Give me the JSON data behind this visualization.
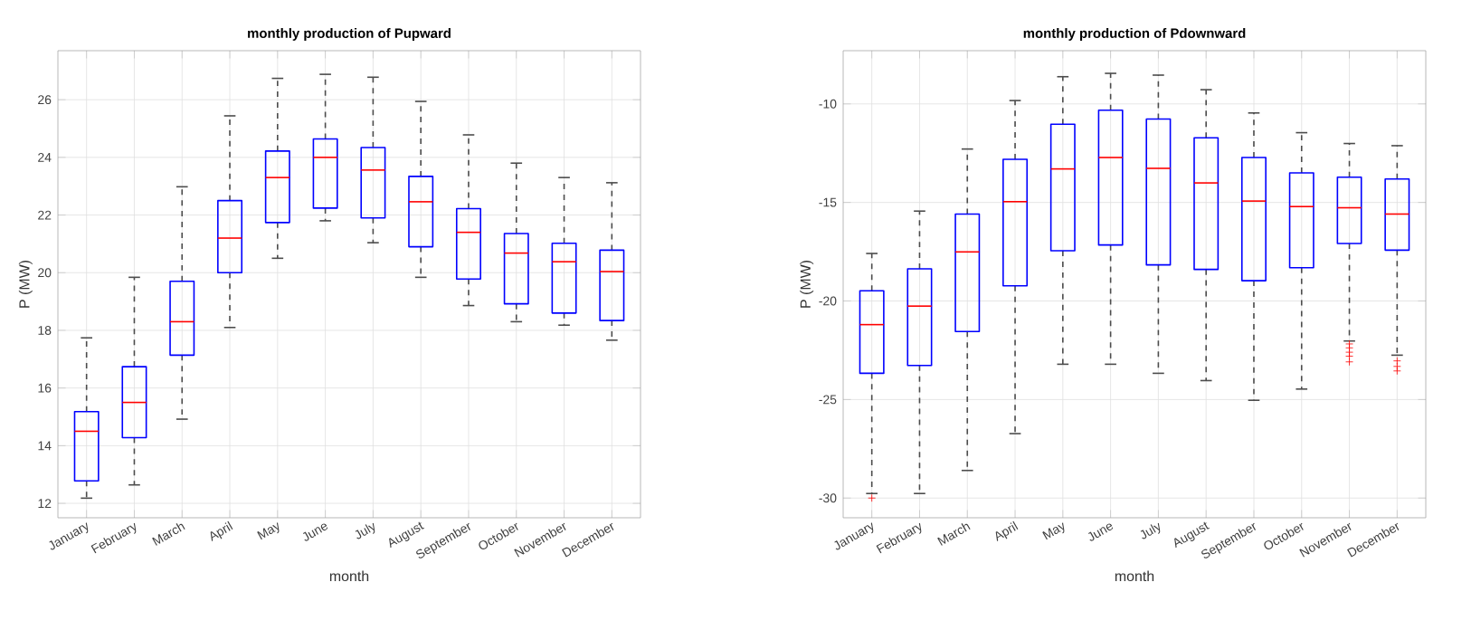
{
  "chart_data": [
    {
      "type": "box",
      "title": "monthly production of  Pupward",
      "xlabel": "month",
      "ylabel": "P (MW)",
      "color": "#0000ff",
      "grid": true,
      "ylim": [
        11.5,
        27.7
      ],
      "yticks": [
        12,
        14,
        16,
        18,
        20,
        22,
        24,
        26
      ],
      "categories": [
        "January",
        "February",
        "March",
        "April",
        "May",
        "June",
        "July",
        "August",
        "September",
        "October",
        "November",
        "December"
      ],
      "boxes": [
        {
          "low": 12.18,
          "q1": 12.78,
          "median": 14.5,
          "q3": 15.18,
          "high": 17.74
        },
        {
          "low": 12.64,
          "q1": 14.28,
          "median": 15.5,
          "q3": 16.74,
          "high": 19.84
        },
        {
          "low": 14.92,
          "q1": 17.14,
          "median": 18.3,
          "q3": 19.7,
          "high": 22.98
        },
        {
          "low": 18.1,
          "q1": 20.0,
          "median": 21.2,
          "q3": 22.5,
          "high": 25.44
        },
        {
          "low": 20.5,
          "q1": 21.74,
          "median": 23.3,
          "q3": 24.22,
          "high": 26.74
        },
        {
          "low": 21.8,
          "q1": 22.24,
          "median": 24.0,
          "q3": 24.64,
          "high": 26.88
        },
        {
          "low": 21.04,
          "q1": 21.9,
          "median": 23.56,
          "q3": 24.34,
          "high": 26.78
        },
        {
          "low": 19.84,
          "q1": 20.9,
          "median": 22.46,
          "q3": 23.34,
          "high": 25.94
        },
        {
          "low": 18.86,
          "q1": 19.78,
          "median": 21.4,
          "q3": 22.22,
          "high": 24.78
        },
        {
          "low": 18.3,
          "q1": 18.92,
          "median": 20.68,
          "q3": 21.36,
          "high": 23.8
        },
        {
          "low": 18.18,
          "q1": 18.6,
          "median": 20.38,
          "q3": 21.02,
          "high": 23.3
        },
        {
          "low": 17.66,
          "q1": 18.34,
          "median": 20.04,
          "q3": 20.78,
          "high": 23.12
        }
      ]
    },
    {
      "type": "box",
      "title": "monthly production of  Pdownward",
      "xlabel": "month",
      "ylabel": "P (MW)",
      "color": "#0000ff",
      "grid": true,
      "ylim": [
        -31,
        -7.3
      ],
      "yticks": [
        -30,
        -25,
        -20,
        -15,
        -10
      ],
      "categories": [
        "January",
        "February",
        "March",
        "April",
        "May",
        "June",
        "July",
        "August",
        "September",
        "October",
        "November",
        "December"
      ],
      "boxes": [
        {
          "low": -29.77,
          "q1": -23.67,
          "median": -21.2,
          "q3": -19.48,
          "high": -17.59,
          "outliers": [
            -30.0
          ]
        },
        {
          "low": -29.77,
          "q1": -23.27,
          "median": -20.26,
          "q3": -18.37,
          "high": -15.44
        },
        {
          "low": -28.6,
          "q1": -21.55,
          "median": -17.51,
          "q3": -15.59,
          "high": -12.29
        },
        {
          "low": -26.73,
          "q1": -19.23,
          "median": -14.96,
          "q3": -12.81,
          "high": -9.83
        },
        {
          "low": -23.21,
          "q1": -17.45,
          "median": -13.3,
          "q3": -11.03,
          "high": -8.62
        },
        {
          "low": -23.21,
          "q1": -17.16,
          "median": -12.72,
          "q3": -10.32,
          "high": -8.45
        },
        {
          "low": -23.67,
          "q1": -18.17,
          "median": -13.27,
          "q3": -10.77,
          "high": -8.54
        },
        {
          "low": -24.04,
          "q1": -18.4,
          "median": -14.01,
          "q3": -11.72,
          "high": -9.28
        },
        {
          "low": -25.04,
          "q1": -18.97,
          "median": -14.93,
          "q3": -12.72,
          "high": -10.46
        },
        {
          "low": -24.47,
          "q1": -18.31,
          "median": -15.21,
          "q3": -13.5,
          "high": -11.46
        },
        {
          "low": -22.03,
          "q1": -17.08,
          "median": -15.27,
          "q3": -13.72,
          "high": -12.01,
          "outliers": [
            -22.18,
            -22.38,
            -22.6,
            -22.8,
            -23.09
          ]
        },
        {
          "low": -22.75,
          "q1": -17.42,
          "median": -15.59,
          "q3": -13.81,
          "high": -12.12,
          "outliers": [
            -23.04,
            -23.32,
            -23.55
          ]
        }
      ]
    }
  ]
}
